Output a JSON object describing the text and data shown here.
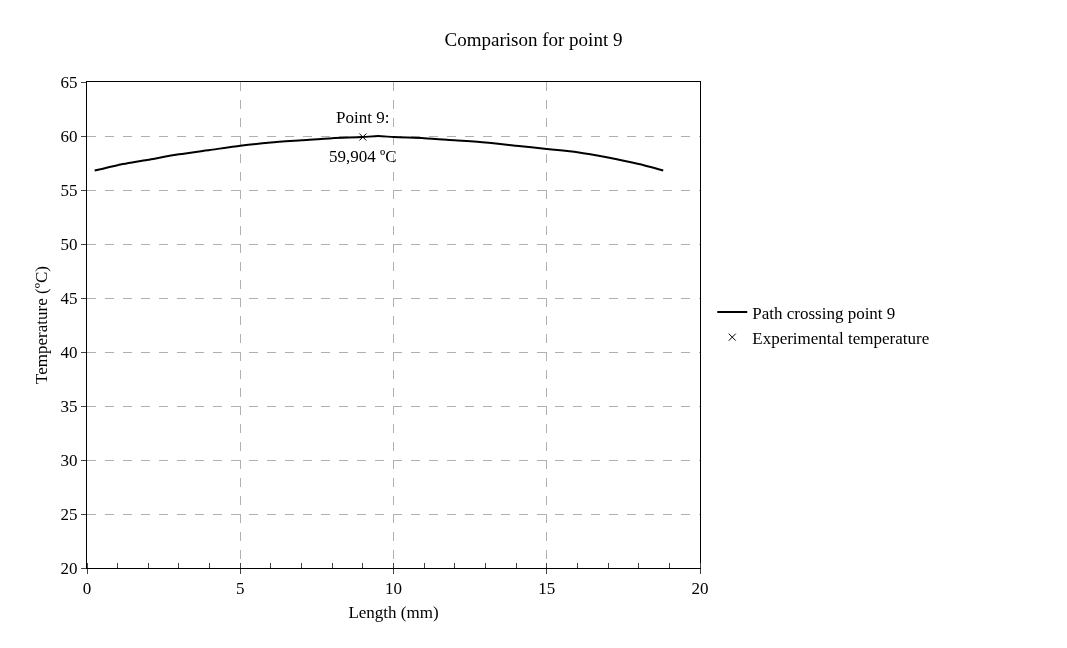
{
  "chart_data": {
    "type": "line",
    "title": "Comparison for point 9",
    "xlabel": "Length (mm)",
    "ylabel": "Temperature (ºC)",
    "series": [
      {
        "name": "Path crossing point 9",
        "type": "line",
        "color": "#000000",
        "marker": "none",
        "line_style": "solid",
        "x": [
          0.25,
          1,
          2,
          3,
          4,
          5,
          6,
          7,
          8,
          9,
          9.5,
          10,
          11,
          12,
          13,
          14,
          15,
          16,
          17,
          18,
          18.8
        ],
        "values": [
          56.8,
          57.3,
          57.8,
          58.3,
          58.7,
          59.1,
          59.4,
          59.6,
          59.8,
          59.9,
          60,
          59.9,
          59.8,
          59.6,
          59.4,
          59.1,
          58.8,
          58.5,
          58,
          57.4,
          56.8
        ]
      },
      {
        "name": "Experimental temperature",
        "type": "scatter",
        "color": "#000000",
        "marker": "cross",
        "x": [
          9
        ],
        "values": [
          59.904
        ]
      }
    ],
    "annotations": [
      {
        "text": "Point 9:",
        "x": 9,
        "y": 59.904
      },
      {
        "text": "59,904 ºC",
        "x": 9,
        "y": 59.904
      }
    ],
    "xlim": [
      0,
      20
    ],
    "xticks": [
      0,
      5,
      10,
      15,
      20
    ],
    "ylim": [
      20,
      65
    ],
    "yticks": [
      20,
      25,
      30,
      35,
      40,
      45,
      50,
      55,
      60,
      65
    ],
    "grid": true,
    "legend": "right"
  }
}
